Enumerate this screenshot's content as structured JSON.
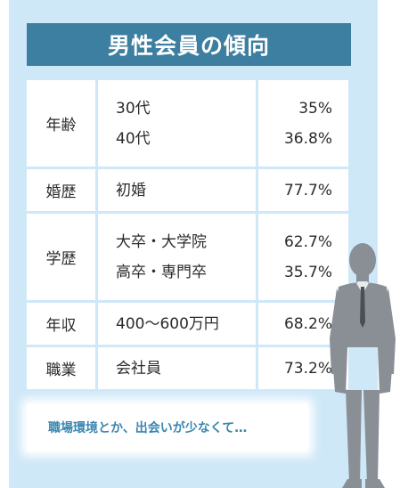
{
  "title": "男性会員の傾向",
  "rows": [
    {
      "label": "年齢",
      "items": [
        "30代",
        "40代"
      ],
      "values": [
        "35%",
        "36.8%"
      ]
    },
    {
      "label": "婚歴",
      "items": [
        "初婚"
      ],
      "values": [
        "77.7%"
      ]
    },
    {
      "label": "学歴",
      "items": [
        "大卒・大学院",
        "高卒・専門卒"
      ],
      "values": [
        "62.7%",
        "35.7%"
      ]
    },
    {
      "label": "年収",
      "items": [
        "400〜600万円"
      ],
      "values": [
        "68.2%"
      ]
    },
    {
      "label": "職業",
      "items": [
        "会社員"
      ],
      "values": [
        "73.2%"
      ]
    }
  ],
  "caption": "職場環境とか、出会いが少なくて…",
  "colors": {
    "panel_bg": "#cfe8f8",
    "title_bg": "#3d7fa0",
    "caption_text": "#3a86b0",
    "silhouette": "#8a8f96"
  },
  "illustration": "businessman-silhouette-icon"
}
